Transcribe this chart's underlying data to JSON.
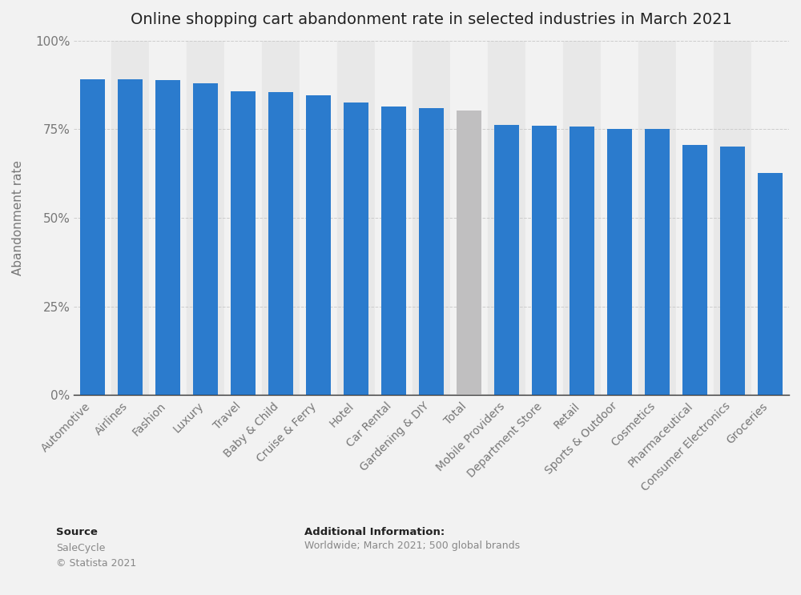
{
  "title": "Online shopping cart abandonment rate in selected industries in March 2021",
  "categories": [
    "Automotive",
    "Airlines",
    "Fashion",
    "Luxury",
    "Travel",
    "Baby & Child",
    "Cruise & Ferry",
    "Hotel",
    "Car Rental",
    "Gardening & DIY",
    "Total",
    "Mobile Providers",
    "Department Store",
    "Retail",
    "Sports & Outdoor",
    "Cosmetics",
    "Pharmaceutical",
    "Consumer Electronics",
    "Groceries"
  ],
  "values": [
    89.1,
    89.0,
    88.9,
    87.9,
    85.7,
    85.5,
    84.6,
    82.5,
    81.4,
    80.9,
    80.3,
    76.2,
    76.1,
    75.7,
    75.2,
    75.1,
    70.5,
    70.2,
    62.6
  ],
  "bar_colors": [
    "#2b7bcd",
    "#2b7bcd",
    "#2b7bcd",
    "#2b7bcd",
    "#2b7bcd",
    "#2b7bcd",
    "#2b7bcd",
    "#2b7bcd",
    "#2b7bcd",
    "#2b7bcd",
    "#c0bfc0",
    "#2b7bcd",
    "#2b7bcd",
    "#2b7bcd",
    "#2b7bcd",
    "#2b7bcd",
    "#2b7bcd",
    "#2b7bcd",
    "#2b7bcd"
  ],
  "ylabel": "Abandonment rate",
  "ylim": [
    0,
    100
  ],
  "yticks": [
    0,
    25,
    50,
    75,
    100
  ],
  "ytick_labels": [
    "0%",
    "25%",
    "50%",
    "75%",
    "100%"
  ],
  "background_color": "#f2f2f2",
  "plot_bg_color": "#ffffff",
  "col_band_color_even": "#f2f2f2",
  "col_band_color_odd": "#e8e8e8",
  "title_fontsize": 14,
  "source_label": "Source",
  "source_body": "SaleCycle\n© Statista 2021",
  "additional_label": "Additional Information:",
  "additional_body": "Worldwide; March 2021; 500 global brands"
}
